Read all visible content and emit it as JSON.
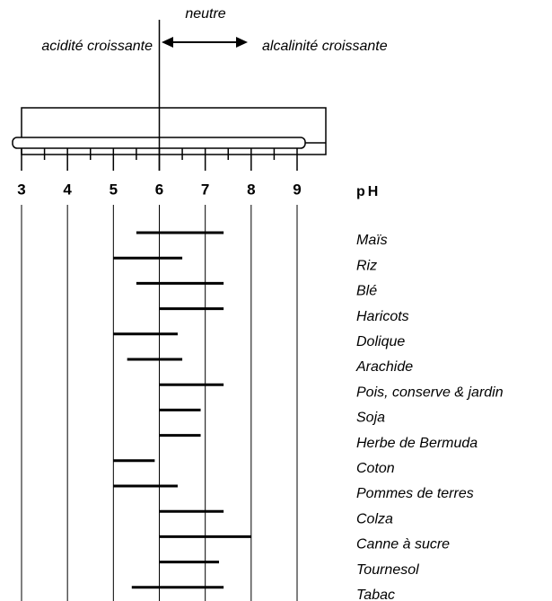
{
  "chart_data": {
    "type": "range",
    "top_label": "neutre",
    "left_label": "acidité croissante",
    "right_label": "alcalinité croissante",
    "x_label": "pH",
    "categories": [
      "Maïs",
      "Riz",
      "Blé",
      "Haricots",
      "Dolique",
      "Arachide",
      "Pois, conserve & jardin",
      "Soja",
      "Herbe de Bermuda",
      "Coton",
      "Pommes de terres",
      "Colza",
      "Canne à sucre",
      "Tournesol",
      "Tabac"
    ],
    "low": [
      5.5,
      5.0,
      5.5,
      6.0,
      5.0,
      5.3,
      6.0,
      6.0,
      6.0,
      5.0,
      5.0,
      6.0,
      6.0,
      6.0,
      5.4
    ],
    "high": [
      7.4,
      6.5,
      7.4,
      7.4,
      6.4,
      6.5,
      7.4,
      6.9,
      6.9,
      5.9,
      6.4,
      7.4,
      8.0,
      7.3,
      7.4
    ],
    "color": "#000000",
    "xlim": [
      3,
      9
    ],
    "xticks": [
      3,
      4,
      5,
      6,
      7,
      8,
      9
    ],
    "grid": true
  }
}
